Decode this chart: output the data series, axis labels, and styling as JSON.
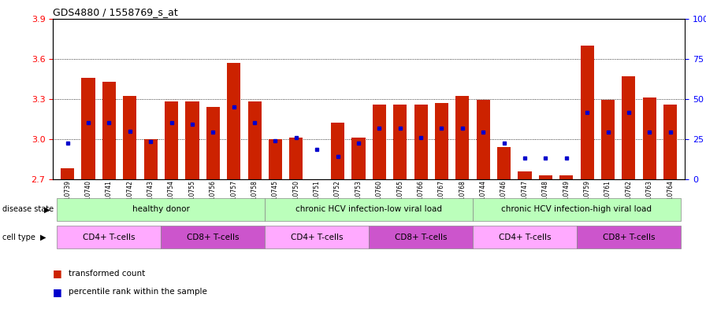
{
  "title": "GDS4880 / 1558769_s_at",
  "samples": [
    "GSM1210739",
    "GSM1210740",
    "GSM1210741",
    "GSM1210742",
    "GSM1210743",
    "GSM1210754",
    "GSM1210755",
    "GSM1210756",
    "GSM1210757",
    "GSM1210758",
    "GSM1210745",
    "GSM1210750",
    "GSM1210751",
    "GSM1210752",
    "GSM1210753",
    "GSM1210760",
    "GSM1210765",
    "GSM1210766",
    "GSM1210767",
    "GSM1210768",
    "GSM1210744",
    "GSM1210746",
    "GSM1210747",
    "GSM1210748",
    "GSM1210749",
    "GSM1210759",
    "GSM1210761",
    "GSM1210762",
    "GSM1210763",
    "GSM1210764"
  ],
  "bar_tops": [
    2.78,
    3.46,
    3.43,
    3.32,
    3.0,
    3.28,
    3.28,
    3.24,
    3.57,
    3.28,
    3.0,
    3.01,
    2.7,
    3.12,
    3.01,
    3.26,
    3.26,
    3.26,
    3.27,
    3.32,
    3.29,
    2.94,
    2.76,
    2.73,
    2.73,
    3.7,
    3.29,
    3.47,
    3.31,
    3.26
  ],
  "blue_dots": [
    2.97,
    3.12,
    3.12,
    3.06,
    2.98,
    3.12,
    3.11,
    3.05,
    3.24,
    3.12,
    2.99,
    3.01,
    2.92,
    2.87,
    2.97,
    3.08,
    3.08,
    3.01,
    3.08,
    3.08,
    3.05,
    2.97,
    2.86,
    2.86,
    2.86,
    3.2,
    3.05,
    3.2,
    3.05,
    3.05
  ],
  "ymin": 2.7,
  "ymax": 3.9,
  "yticks": [
    2.7,
    3.0,
    3.3,
    3.6,
    3.9
  ],
  "right_ytick_vals": [
    0,
    25,
    50,
    75,
    100
  ],
  "right_ytick_labels": [
    "0",
    "25",
    "50",
    "75",
    "100%"
  ],
  "bar_color": "#cc2200",
  "blue_color": "#0000cc",
  "grid_lines": [
    3.0,
    3.3,
    3.6
  ],
  "disease_states": [
    {
      "label": "healthy donor",
      "start": 0,
      "end": 9,
      "color": "#bbffbb"
    },
    {
      "label": "chronic HCV infection-low viral load",
      "start": 10,
      "end": 19,
      "color": "#bbffbb"
    },
    {
      "label": "chronic HCV infection-high viral load",
      "start": 20,
      "end": 29,
      "color": "#bbffbb"
    }
  ],
  "cell_types": [
    {
      "label": "CD4+ T-cells",
      "start": 0,
      "end": 4,
      "color": "#ffaaff"
    },
    {
      "label": "CD8+ T-cells",
      "start": 5,
      "end": 9,
      "color": "#cc55cc"
    },
    {
      "label": "CD4+ T-cells",
      "start": 10,
      "end": 14,
      "color": "#ffaaff"
    },
    {
      "label": "CD8+ T-cells",
      "start": 15,
      "end": 19,
      "color": "#cc55cc"
    },
    {
      "label": "CD4+ T-cells",
      "start": 20,
      "end": 24,
      "color": "#ffaaff"
    },
    {
      "label": "CD8+ T-cells",
      "start": 25,
      "end": 29,
      "color": "#cc55cc"
    }
  ],
  "disease_state_label": "disease state",
  "cell_type_label": "cell type",
  "legend_bar_label": "transformed count",
  "legend_dot_label": "percentile rank within the sample",
  "bg_color": "#e8e8e8"
}
